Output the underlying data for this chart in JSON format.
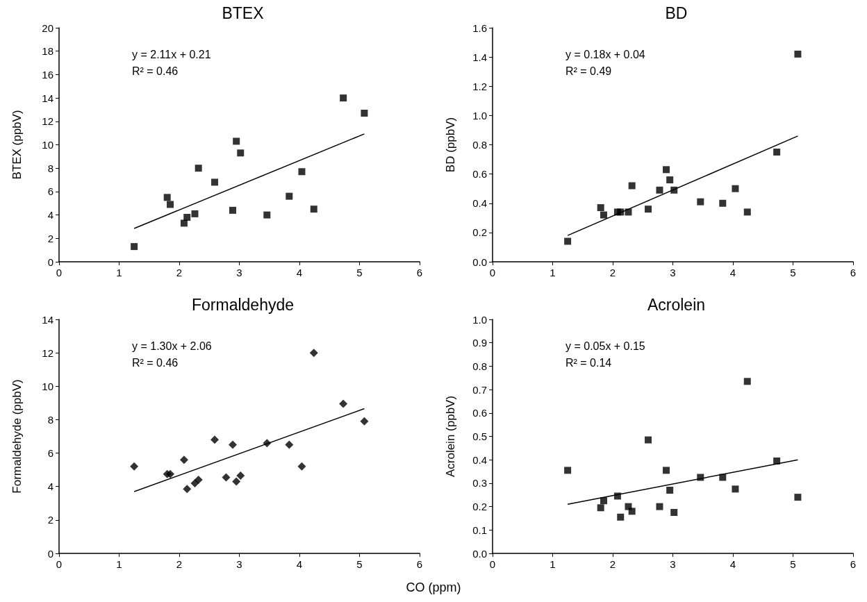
{
  "chart_data": [
    {
      "type": "scatter",
      "title": "BTEX",
      "ylabel": "BTEX (ppbV)",
      "annotations": [
        "y = 2.11x + 0.21",
        "R² = 0.46"
      ],
      "xlim": [
        0,
        6
      ],
      "xticks": [
        0,
        1,
        2,
        3,
        4,
        5,
        6
      ],
      "ylim": [
        0,
        20
      ],
      "yticks": [
        0,
        2,
        4,
        6,
        8,
        10,
        12,
        14,
        16,
        18,
        20
      ],
      "grid": false,
      "series": [
        {
          "type": "scatter",
          "marker": "square",
          "color": "#000000",
          "x": [
            1.25,
            1.8,
            1.85,
            2.08,
            2.13,
            2.26,
            2.32,
            2.59,
            2.89,
            2.95,
            3.02,
            3.46,
            3.83,
            4.04,
            4.24,
            4.73,
            5.08
          ],
          "values": [
            1.3,
            5.5,
            4.9,
            3.3,
            3.8,
            4.1,
            8.0,
            6.8,
            4.4,
            10.3,
            9.3,
            4.0,
            5.6,
            7.7,
            4.5,
            14.0,
            12.7
          ]
        },
        {
          "type": "line",
          "marker": "none",
          "line_style": "solid",
          "color": "#000000",
          "x": [
            1.25,
            5.08
          ],
          "values": [
            2.85,
            10.93
          ]
        }
      ]
    },
    {
      "type": "scatter",
      "title": "BD",
      "ylabel": "BD (ppbV)",
      "annotations": [
        "y = 0.18x + 0.04",
        "R² = 0.49"
      ],
      "xlim": [
        0,
        6
      ],
      "xticks": [
        0,
        1,
        2,
        3,
        4,
        5,
        6
      ],
      "ylim": [
        0,
        1.6
      ],
      "yticks": [
        {
          "value": 0,
          "label": "0.0"
        },
        {
          "value": 0.2,
          "label": "0.2"
        },
        {
          "value": 0.4,
          "label": "0.4"
        },
        {
          "value": 0.6,
          "label": "0.6"
        },
        {
          "value": 0.8,
          "label": "0.8"
        },
        {
          "value": 1,
          "label": "1.0"
        },
        {
          "value": 1.2,
          "label": "1.2"
        },
        {
          "value": 1.4,
          "label": "1.4"
        },
        {
          "value": 1.6,
          "label": "1.6"
        }
      ],
      "grid": false,
      "series": [
        {
          "type": "scatter",
          "marker": "square",
          "color": "#000000",
          "x": [
            1.25,
            1.8,
            1.85,
            2.08,
            2.13,
            2.26,
            2.32,
            2.59,
            2.78,
            2.89,
            2.95,
            3.02,
            3.46,
            3.83,
            4.04,
            4.24,
            4.73,
            5.08
          ],
          "values": [
            0.14,
            0.37,
            0.32,
            0.34,
            0.34,
            0.34,
            0.52,
            0.36,
            0.49,
            0.63,
            0.56,
            0.49,
            0.41,
            0.4,
            0.5,
            0.34,
            0.75,
            1.42
          ]
        },
        {
          "type": "line",
          "marker": "none",
          "line_style": "solid",
          "color": "#000000",
          "x": [
            1.25,
            5.08
          ],
          "values": [
            0.18,
            0.86
          ]
        }
      ]
    },
    {
      "type": "scatter",
      "title": "Formaldehyde",
      "ylabel": "Formaldehyde (ppbV)",
      "xlabel": "CO (ppm)",
      "annotations": [
        "y = 1.30x + 2.06",
        "R² = 0.46"
      ],
      "xlim": [
        0,
        6
      ],
      "xticks": [
        0,
        1,
        2,
        3,
        4,
        5,
        6
      ],
      "ylim": [
        0,
        14
      ],
      "yticks": [
        0,
        2,
        4,
        6,
        8,
        10,
        12,
        14
      ],
      "grid": false,
      "series": [
        {
          "type": "scatter",
          "marker": "diamond",
          "color": "#000000",
          "x": [
            1.25,
            1.8,
            1.85,
            2.08,
            2.13,
            2.26,
            2.32,
            2.59,
            2.78,
            2.89,
            2.95,
            3.02,
            3.46,
            3.83,
            4.04,
            4.24,
            4.73,
            5.08
          ],
          "values": [
            5.2,
            4.75,
            4.75,
            5.6,
            3.85,
            4.2,
            4.4,
            6.8,
            4.55,
            6.5,
            4.3,
            4.65,
            6.6,
            6.5,
            5.2,
            12.0,
            8.95,
            7.9
          ]
        },
        {
          "type": "line",
          "marker": "none",
          "line_style": "solid",
          "color": "#000000",
          "x": [
            1.25,
            5.08
          ],
          "values": [
            3.7,
            8.66
          ]
        }
      ]
    },
    {
      "type": "scatter",
      "title": "Acrolein",
      "ylabel": "Acrolein (ppbV)",
      "annotations": [
        "y = 0.05x + 0.15",
        "R² = 0.14"
      ],
      "xlim": [
        0,
        6
      ],
      "xticks": [
        0,
        1,
        2,
        3,
        4,
        5,
        6
      ],
      "ylim": [
        0,
        1
      ],
      "yticks": [
        {
          "value": 0,
          "label": "0.0"
        },
        {
          "value": 0.1,
          "label": "0.1"
        },
        {
          "value": 0.2,
          "label": "0.2"
        },
        {
          "value": 0.3,
          "label": "0.3"
        },
        {
          "value": 0.4,
          "label": "0.4"
        },
        {
          "value": 0.5,
          "label": "0.5"
        },
        {
          "value": 0.6,
          "label": "0.6"
        },
        {
          "value": 0.7,
          "label": "0.7"
        },
        {
          "value": 0.8,
          "label": "0.8"
        },
        {
          "value": 0.9,
          "label": "0.9"
        },
        {
          "value": 1,
          "label": "1.0"
        }
      ],
      "grid": false,
      "series": [
        {
          "type": "scatter",
          "marker": "square",
          "color": "#000000",
          "x": [
            1.25,
            1.8,
            1.85,
            2.08,
            2.13,
            2.26,
            2.32,
            2.59,
            2.78,
            2.89,
            2.95,
            3.02,
            3.46,
            3.83,
            4.04,
            4.24,
            4.73,
            5.08
          ],
          "values": [
            0.355,
            0.195,
            0.225,
            0.245,
            0.155,
            0.2,
            0.18,
            0.485,
            0.2,
            0.355,
            0.27,
            0.175,
            0.325,
            0.325,
            0.275,
            0.735,
            0.395,
            0.24
          ]
        },
        {
          "type": "line",
          "marker": "none",
          "line_style": "solid",
          "color": "#000000",
          "x": [
            1.25,
            5.08
          ],
          "values": [
            0.21,
            0.4
          ]
        }
      ]
    }
  ]
}
